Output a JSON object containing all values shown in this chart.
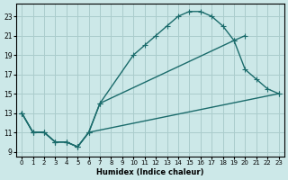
{
  "xlabel": "Humidex (Indice chaleur)",
  "bg_color": "#cce8e8",
  "grid_color": "#aacccc",
  "line_color": "#1a6b6b",
  "xlim": [
    -0.5,
    23.5
  ],
  "ylim": [
    8.5,
    24.3
  ],
  "xticks": [
    0,
    1,
    2,
    3,
    4,
    5,
    6,
    7,
    8,
    9,
    10,
    11,
    12,
    13,
    14,
    15,
    16,
    17,
    18,
    19,
    20,
    21,
    22,
    23
  ],
  "yticks": [
    9,
    11,
    13,
    15,
    17,
    19,
    21,
    23
  ],
  "curve1_x": [
    0,
    1,
    2,
    3,
    4,
    5,
    6,
    7,
    10,
    11,
    12,
    13,
    14,
    15,
    16,
    17,
    18,
    19,
    20
  ],
  "curve1_y": [
    13,
    11,
    11,
    10,
    10,
    9.5,
    11,
    14,
    19,
    20,
    21,
    22,
    23,
    23.5,
    23.5,
    23,
    22,
    20.5,
    21
  ],
  "curve2_x": [
    0,
    1,
    2,
    3,
    4,
    5,
    6,
    7,
    19,
    20,
    21,
    22,
    23
  ],
  "curve2_y": [
    13,
    11,
    11,
    10,
    10,
    9.5,
    11,
    14,
    20.5,
    17.5,
    16.5,
    15.5,
    15
  ],
  "curve3_x": [
    0,
    1,
    2,
    3,
    4,
    5,
    6,
    23
  ],
  "curve3_y": [
    13,
    11,
    11,
    10,
    10,
    9.5,
    11,
    15
  ]
}
